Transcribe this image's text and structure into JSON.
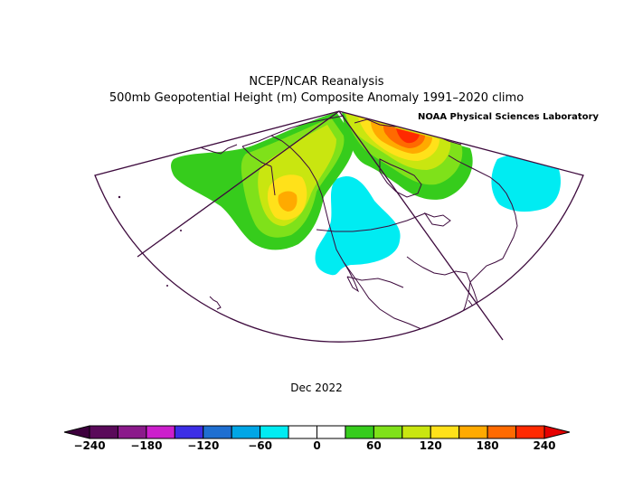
{
  "header": {
    "title": "NCEP/NCAR Reanalysis",
    "subtitle": "500mb Geopotential Height (m) Composite Anomaly 1991–2020 climo",
    "credit": "NOAA Physical Sciences Laboratory"
  },
  "period": "Dec 2022",
  "colorbar": {
    "bins": [
      {
        "lo": -240,
        "hi": -210,
        "color": "#5a0a5a"
      },
      {
        "lo": -210,
        "hi": -180,
        "color": "#8b1a8b"
      },
      {
        "lo": -180,
        "hi": -150,
        "color": "#cc1fcc"
      },
      {
        "lo": -150,
        "hi": -120,
        "color": "#3c2ee6"
      },
      {
        "lo": -120,
        "hi": -90,
        "color": "#1f6fd1"
      },
      {
        "lo": -90,
        "hi": -60,
        "color": "#00a6e6"
      },
      {
        "lo": -60,
        "hi": -30,
        "color": "#00ecf2"
      },
      {
        "lo": -30,
        "hi": 0,
        "color": "#ffffff"
      },
      {
        "lo": 0,
        "hi": 30,
        "color": "#ffffff"
      },
      {
        "lo": 30,
        "hi": 60,
        "color": "#36cc1c"
      },
      {
        "lo": 60,
        "hi": 90,
        "color": "#7fe11a"
      },
      {
        "lo": 90,
        "hi": 120,
        "color": "#c9e610"
      },
      {
        "lo": 120,
        "hi": 150,
        "color": "#ffe11a"
      },
      {
        "lo": 150,
        "hi": 180,
        "color": "#ffaa00"
      },
      {
        "lo": 180,
        "hi": 210,
        "color": "#ff6a00"
      },
      {
        "lo": 210,
        "hi": 240,
        "color": "#ff2a00"
      }
    ],
    "labels": [
      "−240",
      "−180",
      "−120",
      "−60",
      "0",
      "60",
      "120",
      "180",
      "240"
    ],
    "under_color": "#3d003d",
    "over_color": "#e60000"
  },
  "map_colors": {
    "boundary": "#3d0a3d",
    "coast": "#3d0a3d"
  }
}
